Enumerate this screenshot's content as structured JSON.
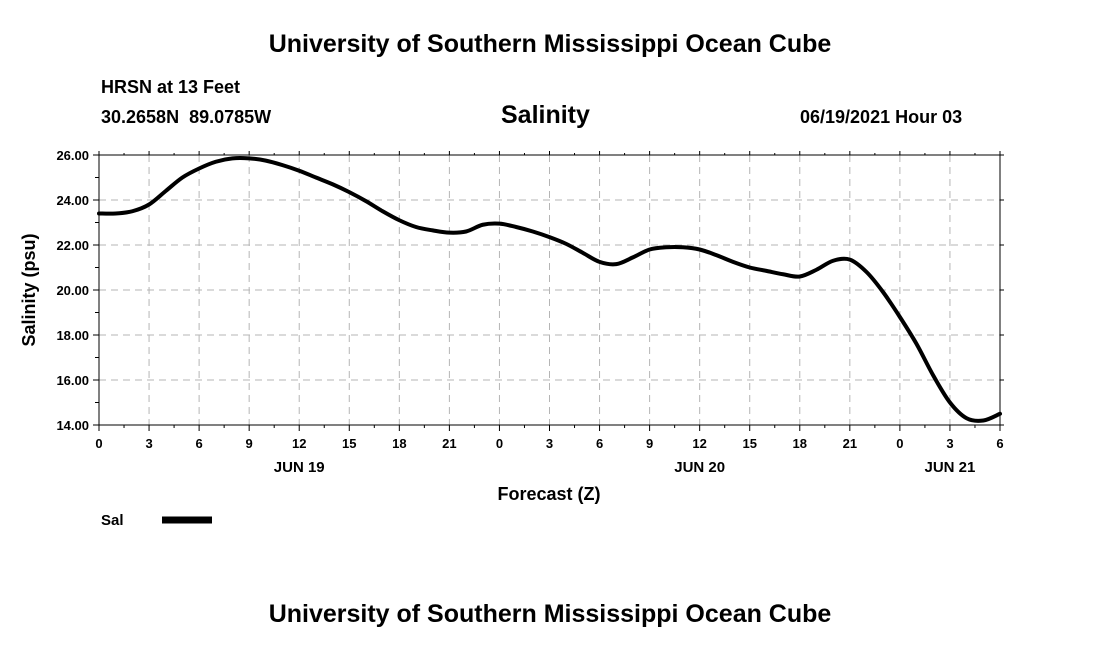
{
  "header": {
    "top_title": "University of Southern Mississippi Ocean Cube",
    "station": "HRSN at 13 Feet",
    "coords": "30.2658N  89.0785W",
    "datetime": "06/19/2021 Hour 03"
  },
  "footer": {
    "bottom_title": "University of Southern Mississippi Ocean Cube"
  },
  "legend": {
    "label": "Sal",
    "color": "#000000"
  },
  "chart_data": {
    "type": "line",
    "title": "Salinity",
    "xlabel": "Forecast (Z)",
    "ylabel": "Salinity (psu)",
    "ylim": [
      14,
      26
    ],
    "xlim": [
      0,
      54
    ],
    "y_ticks": [
      "14.00",
      "16.00",
      "18.00",
      "20.00",
      "22.00",
      "24.00",
      "26.00"
    ],
    "x_ticks": [
      "0",
      "3",
      "6",
      "9",
      "12",
      "15",
      "18",
      "21",
      "0",
      "3",
      "6",
      "9",
      "12",
      "15",
      "18",
      "21",
      "0",
      "3",
      "6"
    ],
    "day_labels": [
      {
        "label": "JUN 19",
        "hour": 12
      },
      {
        "label": "JUN 20",
        "hour": 36
      },
      {
        "label": "JUN 21",
        "hour": 51
      }
    ],
    "grid": true,
    "series": [
      {
        "name": "Sal",
        "color": "#000000",
        "x": [
          0,
          1,
          2,
          3,
          4,
          5,
          6,
          7,
          8,
          9,
          10,
          11,
          12,
          13,
          14,
          15,
          16,
          17,
          18,
          19,
          20,
          21,
          22,
          23,
          24,
          25,
          26,
          27,
          28,
          29,
          30,
          31,
          32,
          33,
          34,
          35,
          36,
          37,
          38,
          39,
          40,
          41,
          42,
          43,
          44,
          45,
          46,
          47,
          48,
          49,
          50,
          51,
          52,
          53,
          54
        ],
        "y": [
          23.4,
          23.4,
          23.5,
          23.8,
          24.4,
          25.0,
          25.4,
          25.7,
          25.85,
          25.85,
          25.75,
          25.55,
          25.3,
          25.0,
          24.7,
          24.35,
          23.95,
          23.5,
          23.1,
          22.8,
          22.65,
          22.55,
          22.6,
          22.9,
          22.95,
          22.8,
          22.6,
          22.35,
          22.05,
          21.65,
          21.25,
          21.15,
          21.45,
          21.8,
          21.9,
          21.9,
          21.8,
          21.55,
          21.25,
          21.0,
          20.85,
          20.7,
          20.6,
          20.9,
          21.3,
          21.35,
          20.8,
          19.9,
          18.8,
          17.6,
          16.2,
          15.0,
          14.3,
          14.2,
          14.5
        ]
      }
    ]
  }
}
